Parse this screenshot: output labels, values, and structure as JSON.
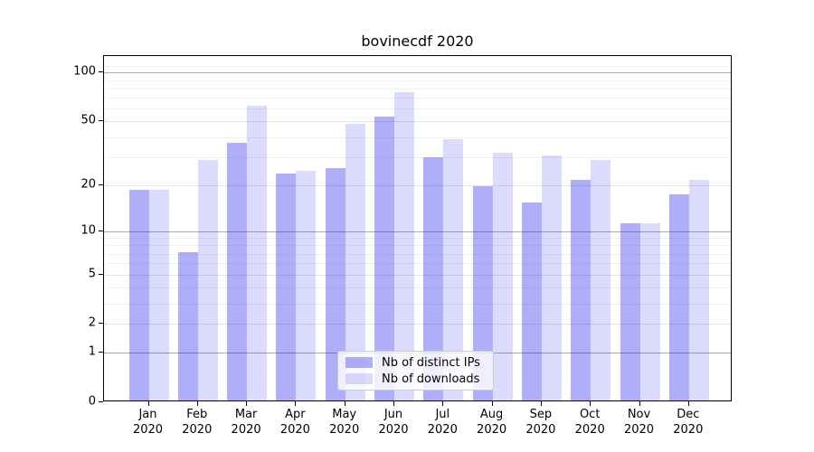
{
  "title": "bovinecdf 2020",
  "colors": {
    "ips_bar_apparent": "#aaaaf9",
    "downloads_bar_apparent": "#d9d9fa",
    "grid_major_dark": "#ababab",
    "grid_major_light": "#e4e4e4",
    "grid_minor": "#f1f1f1",
    "spine": "#000000"
  },
  "legend": {
    "items": [
      {
        "label": "Nb of distinct IPs",
        "series": "ips"
      },
      {
        "label": "Nb of downloads",
        "series": "downloads"
      }
    ]
  },
  "y_axis": {
    "tick_values": [
      100,
      50,
      20,
      10,
      5,
      2,
      1,
      0
    ],
    "tick_labels": [
      "100",
      "50",
      "20",
      "10",
      "5",
      "2",
      "1",
      "0"
    ],
    "minor_grid_values": [
      3,
      4,
      6,
      7,
      8,
      9,
      30,
      40,
      60,
      70,
      80,
      90,
      110
    ],
    "major_dark_grid_values": [
      1,
      10,
      100
    ],
    "major_light_grid_values": [
      2,
      5,
      20,
      50
    ]
  },
  "x_axis": {
    "months": [
      "Jan",
      "Feb",
      "Mar",
      "Apr",
      "May",
      "Jun",
      "Jul",
      "Aug",
      "Sep",
      "Oct",
      "Nov",
      "Dec"
    ],
    "year": "2020"
  },
  "chart_data": {
    "type": "bar",
    "title": "bovinecdf 2020",
    "categories": [
      "Jan 2020",
      "Feb 2020",
      "Mar 2020",
      "Apr 2020",
      "May 2020",
      "Jun 2020",
      "Jul 2020",
      "Aug 2020",
      "Sep 2020",
      "Oct 2020",
      "Nov 2020",
      "Dec 2020"
    ],
    "series": [
      {
        "name": "Nb of distinct IPs",
        "values": [
          18,
          7,
          36,
          23,
          25,
          52,
          29,
          19,
          15,
          21,
          11,
          17
        ]
      },
      {
        "name": "Nb of downloads",
        "values": [
          18,
          28,
          61,
          24,
          47,
          74,
          38,
          31,
          30,
          28,
          11,
          21
        ]
      }
    ],
    "xlabel": "",
    "ylabel": "",
    "yscale": "log1p",
    "ylim": [
      0,
      126.5
    ],
    "yticks": [
      0,
      1,
      2,
      5,
      10,
      20,
      50,
      100
    ],
    "grid": "both",
    "legend_position": "lower center"
  }
}
